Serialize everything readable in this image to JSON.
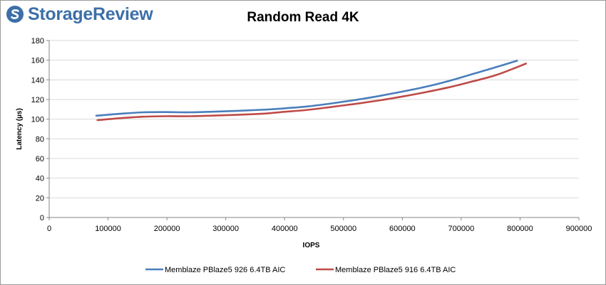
{
  "brand": {
    "name": "StorageReview"
  },
  "colors": {
    "series1": "#4a7ebb",
    "series2": "#be4b48",
    "grid": "#d9d9d9",
    "brand": "#3d6fa8"
  },
  "chart_data": {
    "type": "line",
    "title": "Random Read 4K",
    "xlabel": "IOPS",
    "ylabel": "Latency (µs)",
    "xlim": [
      0,
      900000
    ],
    "ylim": [
      0,
      180
    ],
    "xticks": [
      0,
      100000,
      200000,
      300000,
      400000,
      500000,
      600000,
      700000,
      800000,
      900000
    ],
    "yticks": [
      0,
      20,
      40,
      60,
      80,
      100,
      120,
      140,
      160,
      180
    ],
    "grid": true,
    "legend_position": "bottom",
    "series": [
      {
        "name": "Memblaze PBlaze5 926 6.4TB AIC",
        "x": [
          80000,
          120000,
          160000,
          200000,
          240000,
          300000,
          360000,
          400000,
          440000,
          480000,
          520000,
          560000,
          600000,
          640000,
          680000,
          720000,
          760000,
          795000
        ],
        "y": [
          103.5,
          105.5,
          107,
          107.2,
          107,
          108,
          109.5,
          111,
          113,
          116,
          119.5,
          123.5,
          128,
          133,
          139,
          146,
          153,
          159.5
        ]
      },
      {
        "name": "Memblaze PBlaze5 916 6.4TB AIC",
        "x": [
          82000,
          120000,
          160000,
          200000,
          240000,
          300000,
          360000,
          400000,
          440000,
          480000,
          520000,
          560000,
          600000,
          640000,
          680000,
          720000,
          760000,
          810000
        ],
        "y": [
          99,
          101,
          102.5,
          103,
          103,
          104,
          105.5,
          107.5,
          109.5,
          112.5,
          115.5,
          119,
          123,
          127.5,
          132.5,
          138.5,
          145,
          156.5
        ]
      }
    ]
  }
}
